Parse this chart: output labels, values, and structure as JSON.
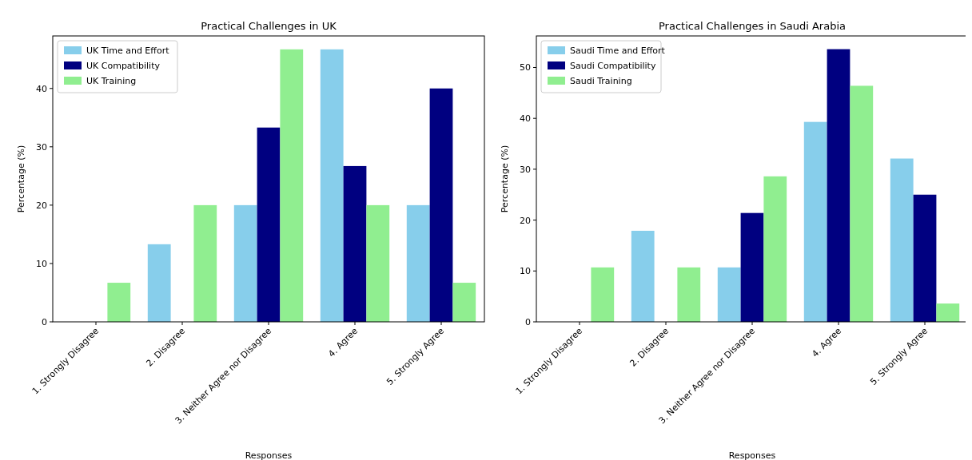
{
  "chart_data": [
    {
      "type": "bar",
      "title": "Practical Challenges in UK",
      "xlabel": "Responses",
      "ylabel": "Percentage (%)",
      "categories": [
        "1. Strongly Disagree",
        "2. Disagree",
        "3. Neither Agree nor Disagree",
        "4. Agree",
        "5. Strongly Agree"
      ],
      "series": [
        {
          "name": "UK Time and Effort",
          "color": "#87ceeb",
          "values": [
            0,
            13.3,
            20,
            46.7,
            20
          ]
        },
        {
          "name": "UK Compatibility",
          "color": "#000080",
          "values": [
            0,
            0,
            33.3,
            26.7,
            40
          ]
        },
        {
          "name": "UK Training",
          "color": "#90ee90",
          "values": [
            6.7,
            20,
            46.7,
            20,
            6.7
          ]
        }
      ],
      "ylim": [
        0,
        49
      ],
      "yticks": [
        0,
        10,
        20,
        30,
        40
      ],
      "grid": false,
      "legend": "top left"
    },
    {
      "type": "bar",
      "title": "Practical Challenges in Saudi Arabia",
      "xlabel": "Responses",
      "ylabel": "Percentage (%)",
      "categories": [
        "1. Strongly Disagree",
        "2. Disagree",
        "3. Neither Agree nor Disagree",
        "4. Agree",
        "5. Strongly Agree"
      ],
      "series": [
        {
          "name": "Saudi Time and Effort",
          "color": "#87ceeb",
          "values": [
            0,
            17.9,
            10.7,
            39.3,
            32.1
          ]
        },
        {
          "name": "Saudi Compatibility",
          "color": "#000080",
          "values": [
            0,
            0,
            21.4,
            53.6,
            25
          ]
        },
        {
          "name": "Saudi Training",
          "color": "#90ee90",
          "values": [
            10.7,
            10.7,
            28.6,
            46.4,
            3.6
          ]
        }
      ],
      "ylim": [
        0,
        56.2
      ],
      "yticks": [
        0,
        10,
        20,
        30,
        40,
        50
      ],
      "grid": false,
      "legend": "top left"
    }
  ]
}
